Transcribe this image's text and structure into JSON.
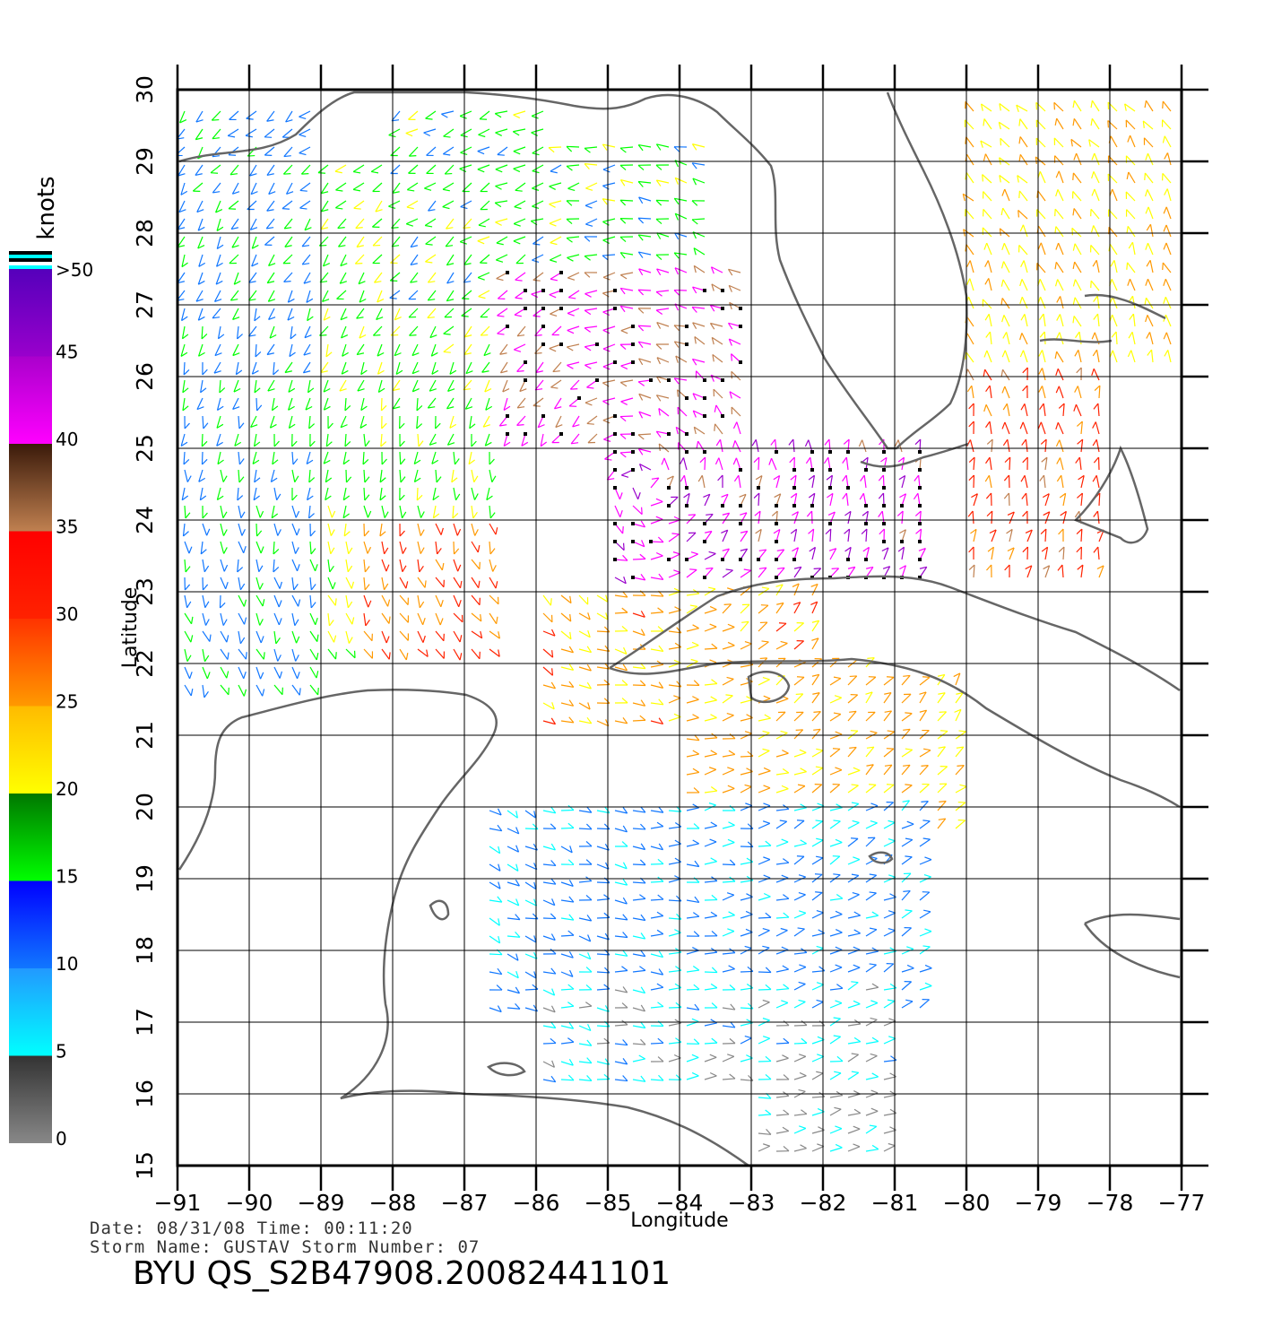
{
  "map": {
    "axis": {
      "lon_ticks": [
        "−91",
        "−90",
        "−89",
        "−88",
        "−87",
        "−86",
        "−85",
        "−84",
        "−83",
        "−82",
        "−81",
        "−80",
        "−79",
        "−78",
        "−77"
      ],
      "lat_ticks": [
        "15",
        "16",
        "17",
        "18",
        "19",
        "20",
        "21",
        "22",
        "23",
        "24",
        "25",
        "26",
        "27",
        "28",
        "29",
        "30"
      ],
      "xlabel": "Longitude",
      "ylabel": "Latitude",
      "lon_range": [
        -91,
        -77
      ],
      "lat_range": [
        15,
        30
      ]
    },
    "colorbar": {
      "title": "knots",
      "labels": [
        ">50",
        "45",
        "40",
        "35",
        "30",
        "25",
        "20",
        "15",
        "10",
        "5",
        "0"
      ],
      "stops": [
        {
          "from": 0,
          "to": 5,
          "top": "#333333",
          "bottom": "#888888"
        },
        {
          "from": 5,
          "to": 10,
          "top": "#2299ff",
          "bottom": "#00ffff"
        },
        {
          "from": 10,
          "to": 15,
          "top": "#0000ff",
          "bottom": "#1177ff"
        },
        {
          "from": 15,
          "to": 20,
          "top": "#007700",
          "bottom": "#00ff00"
        },
        {
          "from": 20,
          "to": 25,
          "top": "#ffbb00",
          "bottom": "#ffff00"
        },
        {
          "from": 25,
          "to": 30,
          "top": "#ff3300",
          "bottom": "#ff9900"
        },
        {
          "from": 30,
          "to": 35,
          "top": "#ff0000",
          "bottom": "#ff2200"
        },
        {
          "from": 35,
          "to": 40,
          "top": "#3a1a0a",
          "bottom": "#c08050"
        },
        {
          "from": 40,
          "to": 45,
          "top": "#aa00cc",
          "bottom": "#ff00ff"
        },
        {
          "from": 45,
          "to": 50,
          "top": "#5500bb",
          "bottom": "#9900cc"
        }
      ]
    },
    "wind_regions": [
      {
        "lon": [
          -91,
          -89
        ],
        "lat": [
          21,
          30
        ],
        "knots": 14
      },
      {
        "lon": [
          -89,
          -86.5
        ],
        "lat": [
          22,
          29
        ],
        "knots": 19
      },
      {
        "lon": [
          -88.5,
          -86.5
        ],
        "lat": [
          22,
          24
        ],
        "knots": 30
      },
      {
        "lon": [
          -88,
          -83.5
        ],
        "lat": [
          27,
          30
        ],
        "knots": 17
      },
      {
        "lon": [
          -86.5,
          -83
        ],
        "lat": [
          25,
          27.5
        ],
        "knots": 41
      },
      {
        "lon": [
          -85,
          -80.5
        ],
        "lat": [
          23,
          25
        ],
        "knots": 43
      },
      {
        "lon": [
          -86,
          -82
        ],
        "lat": [
          21,
          23
        ],
        "knots": 27
      },
      {
        "lon": [
          -80,
          -77
        ],
        "lat": [
          26,
          30
        ],
        "knots": 24
      },
      {
        "lon": [
          -80,
          -78
        ],
        "lat": [
          23,
          26
        ],
        "knots": 32
      },
      {
        "lon": [
          -84,
          -80
        ],
        "lat": [
          19.5,
          22
        ],
        "knots": 26
      },
      {
        "lon": [
          -87,
          -80.5
        ],
        "lat": [
          17,
          20
        ],
        "knots": 11
      },
      {
        "lon": [
          -86,
          -81
        ],
        "lat": [
          16,
          17.5
        ],
        "knots": 7
      },
      {
        "lon": [
          -83,
          -81
        ],
        "lat": [
          15,
          16.3
        ],
        "knots": 3
      }
    ],
    "colors": {
      "land_outline": "#666666",
      "grid": "#000000"
    }
  },
  "meta": {
    "line1": "Date: 08/31/08   Time: 00:11:20",
    "line2": "Storm  Name: GUSTAV   Storm  Number: 07",
    "product": "BYU  QS_S2B47908.20082441101"
  }
}
